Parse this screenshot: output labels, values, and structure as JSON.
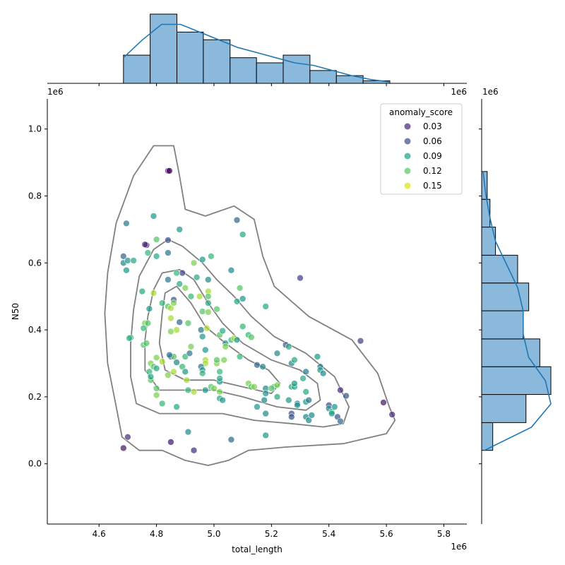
{
  "chart_data": {
    "type": "scatter",
    "xlabel": "total_length",
    "ylabel": "N50",
    "x_offset_label": "1e6",
    "y_offset_label": "1e6",
    "xlim": [
      4.42,
      5.88
    ],
    "ylim": [
      -0.18,
      1.09
    ],
    "xticks": [
      4.6,
      4.8,
      5.0,
      5.2,
      5.4,
      5.6,
      5.8
    ],
    "yticks": [
      0.0,
      0.2,
      0.4,
      0.6,
      0.8,
      1.0
    ],
    "xtick_labels": [
      "4.6",
      "4.8",
      "5.0",
      "5.2",
      "5.4",
      "5.6",
      "5.8"
    ],
    "ytick_labels": [
      "0.0",
      "0.2",
      "0.4",
      "0.6",
      "0.8",
      "1.0"
    ],
    "hue": "anomaly_score",
    "legend": {
      "title": "anomaly_score",
      "placement": "top-right",
      "entries": [
        {
          "label": "0.03",
          "color": "#472d7b"
        },
        {
          "label": "0.06",
          "color": "#3b528b"
        },
        {
          "label": "0.09",
          "color": "#21a585"
        },
        {
          "label": "0.12",
          "color": "#5ec962"
        },
        {
          "label": "0.15",
          "color": "#dde318"
        }
      ]
    },
    "colormap": "viridis",
    "hue_range": [
      0.02,
      0.17
    ],
    "points": [
      [
        4.84,
        0.875,
        0.03
      ],
      [
        4.845,
        0.875,
        0.02
      ],
      [
        4.79,
        0.74,
        0.1
      ],
      [
        4.695,
        0.718,
        0.08
      ],
      [
        4.88,
        0.7,
        0.1
      ],
      [
        4.84,
        0.668,
        0.06
      ],
      [
        4.765,
        0.653,
        0.03
      ],
      [
        4.8,
        0.67,
        0.13
      ],
      [
        4.685,
        0.62,
        0.07
      ],
      [
        4.685,
        0.6,
        0.09
      ],
      [
        4.7,
        0.607,
        0.1
      ],
      [
        4.72,
        0.607,
        0.11
      ],
      [
        4.695,
        0.578,
        0.1
      ],
      [
        4.77,
        0.63,
        0.12
      ],
      [
        4.8,
        0.62,
        0.11
      ],
      [
        4.84,
        0.63,
        0.08
      ],
      [
        4.89,
        0.57,
        0.05
      ],
      [
        4.87,
        0.57,
        0.12
      ],
      [
        4.93,
        0.6,
        0.14
      ],
      [
        4.96,
        0.61,
        0.1
      ],
      [
        4.99,
        0.62,
        0.12
      ],
      [
        4.94,
        0.557,
        0.11
      ],
      [
        4.98,
        0.55,
        0.09
      ],
      [
        5.08,
        0.728,
        0.07
      ],
      [
        5.1,
        0.685,
        0.11
      ],
      [
        5.06,
        0.578,
        0.09
      ],
      [
        5.3,
        0.555,
        0.05
      ],
      [
        4.75,
        0.515,
        0.11
      ],
      [
        4.79,
        0.51,
        0.15
      ],
      [
        4.84,
        0.55,
        0.08
      ],
      [
        4.88,
        0.537,
        0.11
      ],
      [
        4.9,
        0.525,
        0.14
      ],
      [
        4.92,
        0.5,
        0.12
      ],
      [
        4.95,
        0.5,
        0.15
      ],
      [
        4.98,
        0.515,
        0.15
      ],
      [
        4.98,
        0.5,
        0.13
      ],
      [
        4.86,
        0.49,
        0.06
      ],
      [
        4.82,
        0.48,
        0.12
      ],
      [
        4.84,
        0.47,
        0.13
      ],
      [
        4.85,
        0.465,
        0.15
      ],
      [
        4.86,
        0.48,
        0.14
      ],
      [
        4.775,
        0.463,
        0.1
      ],
      [
        4.98,
        0.48,
        0.11
      ],
      [
        4.96,
        0.455,
        0.13
      ],
      [
        4.98,
        0.453,
        0.14
      ],
      [
        5.01,
        0.462,
        0.13
      ],
      [
        5.08,
        0.485,
        0.11
      ],
      [
        5.1,
        0.493,
        0.1
      ],
      [
        5.09,
        0.525,
        0.13
      ],
      [
        5.18,
        0.47,
        0.11
      ],
      [
        4.76,
        0.42,
        0.14
      ],
      [
        4.77,
        0.42,
        0.13
      ],
      [
        4.755,
        0.405,
        0.12
      ],
      [
        4.85,
        0.435,
        0.15
      ],
      [
        4.85,
        0.395,
        0.14
      ],
      [
        4.87,
        0.4,
        0.15
      ],
      [
        4.88,
        0.423,
        0.07
      ],
      [
        4.91,
        0.42,
        0.13
      ],
      [
        4.955,
        0.4,
        0.08
      ],
      [
        4.975,
        0.405,
        0.15
      ],
      [
        5.02,
        0.385,
        0.13
      ],
      [
        5.03,
        0.397,
        0.11
      ],
      [
        5.04,
        0.36,
        0.1
      ],
      [
        5.04,
        0.35,
        0.14
      ],
      [
        5.06,
        0.37,
        0.12
      ],
      [
        5.07,
        0.375,
        0.15
      ],
      [
        5.08,
        0.37,
        0.1
      ],
      [
        5.1,
        0.41,
        0.12
      ],
      [
        5.12,
        0.385,
        0.12
      ],
      [
        5.13,
        0.378,
        0.13
      ],
      [
        4.71,
        0.377,
        0.11
      ],
      [
        4.705,
        0.375,
        0.12
      ],
      [
        4.755,
        0.355,
        0.13
      ],
      [
        4.765,
        0.36,
        0.13
      ],
      [
        4.85,
        0.32,
        0.06
      ],
      [
        4.86,
        0.32,
        0.13
      ],
      [
        4.845,
        0.325,
        0.08
      ],
      [
        4.87,
        0.303,
        0.09
      ],
      [
        4.9,
        0.32,
        0.12
      ],
      [
        4.915,
        0.33,
        0.08
      ],
      [
        4.92,
        0.35,
        0.14
      ],
      [
        4.96,
        0.38,
        0.1
      ],
      [
        4.97,
        0.34,
        0.1
      ],
      [
        4.97,
        0.31,
        0.15
      ],
      [
        4.97,
        0.3,
        0.15
      ],
      [
        5.01,
        0.3,
        0.14
      ],
      [
        5.01,
        0.31,
        0.13
      ],
      [
        5.035,
        0.31,
        0.14
      ],
      [
        5.09,
        0.32,
        0.12
      ],
      [
        5.15,
        0.295,
        0.07
      ],
      [
        4.78,
        0.3,
        0.14
      ],
      [
        4.775,
        0.275,
        0.12
      ],
      [
        4.79,
        0.29,
        0.13
      ],
      [
        4.8,
        0.317,
        0.14
      ],
      [
        4.82,
        0.305,
        0.15
      ],
      [
        4.78,
        0.25,
        0.13
      ],
      [
        4.78,
        0.26,
        0.11
      ],
      [
        4.8,
        0.285,
        0.11
      ],
      [
        4.84,
        0.265,
        0.14
      ],
      [
        4.86,
        0.275,
        0.15
      ],
      [
        4.89,
        0.29,
        0.12
      ],
      [
        4.9,
        0.275,
        0.1
      ],
      [
        4.905,
        0.25,
        0.15
      ],
      [
        4.955,
        0.29,
        0.08
      ],
      [
        4.96,
        0.28,
        0.1
      ],
      [
        4.96,
        0.27,
        0.12
      ],
      [
        4.97,
        0.22,
        0.1
      ],
      [
        4.99,
        0.23,
        0.13
      ],
      [
        5.0,
        0.225,
        0.14
      ],
      [
        5.02,
        0.245,
        0.1
      ],
      [
        5.02,
        0.255,
        0.11
      ],
      [
        5.02,
        0.275,
        0.12
      ],
      [
        5.02,
        0.215,
        0.14
      ],
      [
        5.02,
        0.195,
        0.11
      ],
      [
        5.03,
        0.19,
        0.1
      ],
      [
        5.12,
        0.24,
        0.14
      ],
      [
        5.13,
        0.23,
        0.13
      ],
      [
        5.14,
        0.23,
        0.14
      ],
      [
        5.17,
        0.29,
        0.09
      ],
      [
        5.21,
        0.23,
        0.12
      ],
      [
        5.18,
        0.225,
        0.09
      ],
      [
        5.18,
        0.21,
        0.1
      ],
      [
        5.2,
        0.225,
        0.13
      ],
      [
        5.22,
        0.235,
        0.14
      ],
      [
        5.22,
        0.2,
        0.11
      ],
      [
        4.8,
        0.225,
        0.13
      ],
      [
        4.8,
        0.205,
        0.14
      ],
      [
        4.82,
        0.18,
        0.12
      ],
      [
        4.87,
        0.17,
        0.11
      ],
      [
        4.93,
        0.215,
        0.15
      ],
      [
        5.15,
        0.17,
        0.1
      ],
      [
        5.175,
        0.19,
        0.09
      ],
      [
        5.18,
        0.15,
        0.09
      ],
      [
        5.22,
        0.33,
        0.09
      ],
      [
        5.25,
        0.355,
        0.06
      ],
      [
        5.26,
        0.35,
        0.11
      ],
      [
        5.26,
        0.19,
        0.1
      ],
      [
        5.27,
        0.15,
        0.06
      ],
      [
        5.27,
        0.14,
        0.06
      ],
      [
        5.27,
        0.23,
        0.11
      ],
      [
        5.28,
        0.23,
        0.11
      ],
      [
        5.27,
        0.3,
        0.09
      ],
      [
        5.28,
        0.31,
        0.11
      ],
      [
        5.28,
        0.24,
        0.1
      ],
      [
        5.29,
        0.18,
        0.07
      ],
      [
        5.29,
        0.175,
        0.1
      ],
      [
        5.31,
        0.255,
        0.11
      ],
      [
        5.32,
        0.275,
        0.08
      ],
      [
        5.32,
        0.215,
        0.11
      ],
      [
        5.32,
        0.185,
        0.1
      ],
      [
        5.32,
        0.14,
        0.09
      ],
      [
        5.33,
        0.13,
        0.09
      ],
      [
        5.33,
        0.19,
        0.08
      ],
      [
        5.34,
        0.145,
        0.09
      ],
      [
        5.36,
        0.32,
        0.1
      ],
      [
        5.37,
        0.29,
        0.08
      ],
      [
        5.37,
        0.28,
        0.1
      ],
      [
        5.38,
        0.27,
        0.09
      ],
      [
        5.4,
        0.175,
        0.06
      ],
      [
        5.4,
        0.165,
        0.09
      ],
      [
        5.41,
        0.155,
        0.12
      ],
      [
        5.41,
        0.15,
        0.1
      ],
      [
        5.42,
        0.17,
        0.1
      ],
      [
        5.43,
        0.14,
        0.06
      ],
      [
        5.44,
        0.127,
        0.07
      ],
      [
        5.44,
        0.22,
        0.04
      ],
      [
        5.46,
        0.203,
        0.06
      ],
      [
        5.51,
        0.367,
        0.05
      ],
      [
        5.59,
        0.183,
        0.03
      ],
      [
        5.62,
        0.147,
        0.04
      ],
      [
        4.7,
        0.08,
        0.04
      ],
      [
        4.685,
        0.047,
        0.03
      ],
      [
        4.85,
        0.065,
        0.03
      ],
      [
        4.91,
        0.095,
        0.09
      ],
      [
        4.93,
        0.04,
        0.04
      ],
      [
        5.06,
        0.072,
        0.07
      ],
      [
        5.18,
        0.085,
        0.1
      ],
      [
        4.91,
        0.22,
        0.12
      ],
      [
        4.76,
        0.655,
        0.04
      ]
    ],
    "x_histogram": {
      "bin_edges": [
        4.685,
        4.778,
        4.871,
        4.963,
        5.056,
        5.148,
        5.241,
        5.334,
        5.426,
        5.519,
        5.612
      ],
      "counts": [
        11,
        27,
        20,
        17,
        10,
        8,
        11,
        5,
        3,
        1
      ],
      "kde_y": [
        10,
        17,
        23,
        23,
        20,
        17,
        14,
        12,
        10,
        8,
        7,
        5,
        3,
        1.5,
        0.5
      ]
    },
    "y_histogram": {
      "bin_edges": [
        0.04,
        0.123,
        0.207,
        0.29,
        0.373,
        0.457,
        0.54,
        0.623,
        0.707,
        0.79,
        0.873
      ],
      "counts": [
        4,
        16,
        25,
        21,
        15,
        17,
        13,
        5,
        3,
        2
      ],
      "kde_x": [
        1,
        18,
        25,
        23,
        17,
        15,
        15,
        13,
        9,
        5,
        3,
        1.5,
        0.5
      ]
    },
    "contours": [
      [
        [
          4.63,
          0.57
        ],
        [
          4.66,
          0.72
        ],
        [
          4.72,
          0.86
        ],
        [
          4.79,
          0.95
        ],
        [
          4.86,
          0.95
        ],
        [
          4.88,
          0.86
        ],
        [
          4.9,
          0.76
        ],
        [
          4.97,
          0.74
        ],
        [
          5.07,
          0.77
        ],
        [
          5.14,
          0.73
        ],
        [
          5.17,
          0.62
        ],
        [
          5.21,
          0.53
        ],
        [
          5.33,
          0.44
        ],
        [
          5.48,
          0.37
        ],
        [
          5.57,
          0.27
        ],
        [
          5.61,
          0.17
        ],
        [
          5.63,
          0.13
        ],
        [
          5.6,
          0.09
        ],
        [
          5.45,
          0.06
        ],
        [
          5.25,
          0.05
        ],
        [
          5.12,
          0.04
        ],
        [
          5.05,
          0.01
        ],
        [
          4.98,
          -0.005
        ],
        [
          4.9,
          0.01
        ],
        [
          4.82,
          0.04
        ],
        [
          4.74,
          0.04
        ],
        [
          4.68,
          0.08
        ],
        [
          4.66,
          0.17
        ],
        [
          4.63,
          0.3
        ],
        [
          4.62,
          0.45
        ],
        [
          4.63,
          0.57
        ]
      ],
      [
        [
          4.72,
          0.46
        ],
        [
          4.74,
          0.56
        ],
        [
          4.79,
          0.64
        ],
        [
          4.84,
          0.67
        ],
        [
          4.89,
          0.65
        ],
        [
          4.96,
          0.6
        ],
        [
          5.01,
          0.55
        ],
        [
          5.07,
          0.5
        ],
        [
          5.13,
          0.44
        ],
        [
          5.21,
          0.38
        ],
        [
          5.32,
          0.33
        ],
        [
          5.42,
          0.26
        ],
        [
          5.47,
          0.17
        ],
        [
          5.45,
          0.12
        ],
        [
          5.38,
          0.11
        ],
        [
          5.27,
          0.12
        ],
        [
          5.14,
          0.13
        ],
        [
          5.03,
          0.15
        ],
        [
          4.93,
          0.15
        ],
        [
          4.81,
          0.15
        ],
        [
          4.73,
          0.18
        ],
        [
          4.71,
          0.26
        ],
        [
          4.71,
          0.36
        ],
        [
          4.72,
          0.46
        ]
      ],
      [
        [
          4.77,
          0.44
        ],
        [
          4.79,
          0.52
        ],
        [
          4.82,
          0.57
        ],
        [
          4.88,
          0.58
        ],
        [
          4.93,
          0.55
        ],
        [
          4.98,
          0.48
        ],
        [
          5.03,
          0.42
        ],
        [
          5.1,
          0.36
        ],
        [
          5.2,
          0.31
        ],
        [
          5.3,
          0.28
        ],
        [
          5.36,
          0.24
        ],
        [
          5.37,
          0.19
        ],
        [
          5.32,
          0.16
        ],
        [
          5.22,
          0.17
        ],
        [
          5.1,
          0.2
        ],
        [
          5.0,
          0.22
        ],
        [
          4.9,
          0.22
        ],
        [
          4.81,
          0.22
        ],
        [
          4.76,
          0.28
        ],
        [
          4.76,
          0.37
        ],
        [
          4.77,
          0.44
        ]
      ],
      [
        [
          4.82,
          0.45
        ],
        [
          4.83,
          0.51
        ],
        [
          4.87,
          0.53
        ],
        [
          4.92,
          0.48
        ],
        [
          4.97,
          0.41
        ],
        [
          5.04,
          0.36
        ],
        [
          5.12,
          0.31
        ],
        [
          5.19,
          0.28
        ],
        [
          5.23,
          0.24
        ],
        [
          5.2,
          0.21
        ],
        [
          5.1,
          0.23
        ],
        [
          5.0,
          0.25
        ],
        [
          4.9,
          0.25
        ],
        [
          4.83,
          0.28
        ],
        [
          4.81,
          0.36
        ],
        [
          4.82,
          0.45
        ]
      ]
    ]
  }
}
